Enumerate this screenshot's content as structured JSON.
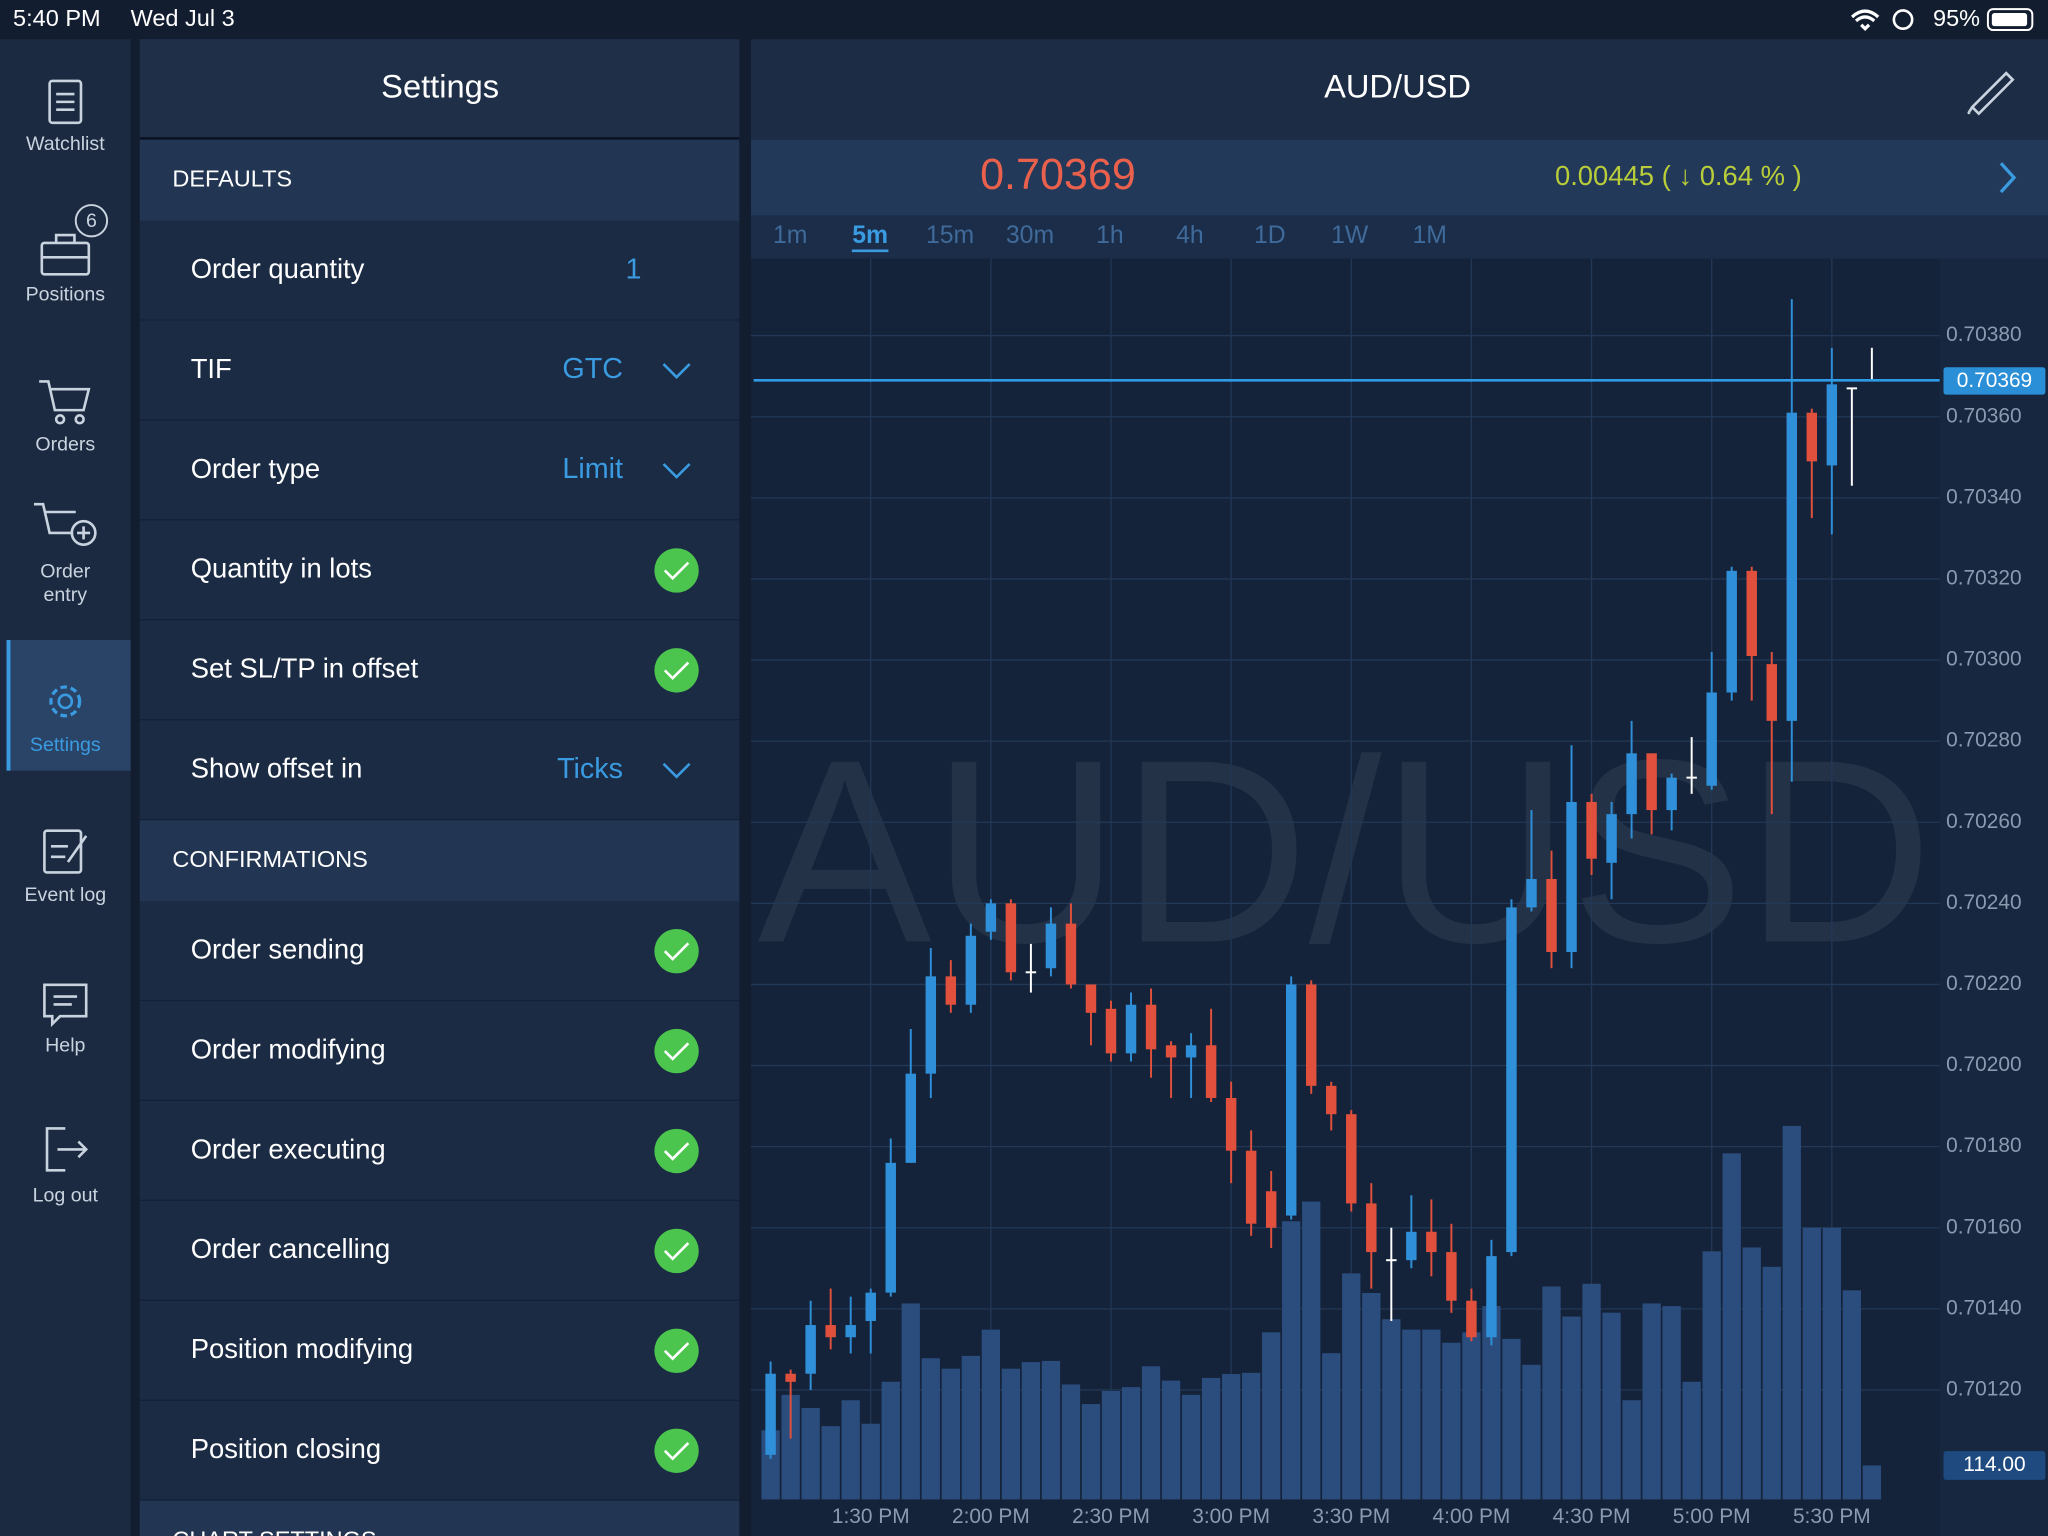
{
  "status_bar": {
    "time": "5:40 PM",
    "date": "Wed Jul 3",
    "battery": "95%"
  },
  "sidebar": {
    "items": [
      {
        "lines": [
          "Watchlist"
        ]
      },
      {
        "lines": [
          "Positions"
        ],
        "badge": 6
      },
      {
        "lines": [
          "Orders"
        ]
      },
      {
        "lines": [
          "Order",
          "entry"
        ]
      },
      {
        "lines": [
          "Settings"
        ],
        "selected": true
      },
      {
        "lines": [
          "Event log"
        ]
      },
      {
        "lines": [
          "Help"
        ]
      },
      {
        "lines": [
          "Log out"
        ]
      }
    ]
  },
  "settings": {
    "title": "Settings",
    "sections": [
      {
        "title": "DEFAULTS",
        "rows": [
          {
            "label": "Order quantity",
            "value": 1
          },
          {
            "label": "TIF",
            "value": "GTC",
            "control": "dropdown"
          },
          {
            "label": "Order type",
            "value": "Limit",
            "control": "dropdown"
          },
          {
            "label": "Quantity in lots",
            "control": "check"
          },
          {
            "label": "Set SL/TP in offset",
            "control": "check"
          },
          {
            "label": "Show offset in",
            "value": "Ticks",
            "control": "dropdown"
          }
        ]
      },
      {
        "title": "CONFIRMATIONS",
        "rows": [
          {
            "label": "Order sending",
            "control": "check"
          },
          {
            "label": "Order modifying",
            "control": "check"
          },
          {
            "label": "Order executing",
            "control": "check"
          },
          {
            "label": "Order cancelling",
            "control": "check"
          },
          {
            "label": "Position modifying",
            "control": "check"
          },
          {
            "label": "Position closing",
            "control": "check"
          }
        ]
      },
      {
        "title": "CHART SETTINGS"
      }
    ]
  },
  "chart_data": {
    "type": "candlestick",
    "title": "AUD/USD",
    "last_price": 0.70369,
    "change": "0.00445 ( ↓ 0.64 % )",
    "timeframes": [
      {
        "label": "1m"
      },
      {
        "label": "5m",
        "selected": true
      },
      {
        "label": "15m"
      },
      {
        "label": "30m"
      },
      {
        "label": "1h"
      },
      {
        "label": "4h"
      },
      {
        "label": "1D"
      },
      {
        "label": "1W"
      },
      {
        "label": "1M"
      }
    ],
    "categories": [
      null,
      null,
      null,
      null,
      null,
      "1:30 PM",
      null,
      null,
      null,
      null,
      null,
      "2:00 PM",
      null,
      null,
      null,
      null,
      null,
      "2:30 PM",
      null,
      null,
      null,
      null,
      null,
      "3:00 PM",
      null,
      null,
      null,
      null,
      null,
      "3:30 PM",
      null,
      null,
      null,
      null,
      null,
      "4:00 PM",
      null,
      null,
      null,
      null,
      null,
      "4:30 PM",
      null,
      null,
      null,
      null,
      null,
      "5:00 PM",
      null,
      null,
      null,
      null,
      null,
      "5:30 PM",
      null,
      null
    ],
    "open": [
      0.70104,
      0.70124,
      0.70124,
      0.70136,
      0.70133,
      0.70137,
      0.70144,
      0.70176,
      0.70198,
      0.70222,
      0.70215,
      0.70233,
      0.7024,
      0.70223,
      0.70224,
      0.70235,
      0.7022,
      0.70214,
      0.70203,
      0.70215,
      0.70205,
      0.70202,
      0.70205,
      0.70192,
      0.70179,
      0.70169,
      0.70163,
      0.7022,
      0.70195,
      0.70188,
      0.70166,
      0.70152,
      0.70152,
      0.70159,
      0.70154,
      0.70142,
      0.70133,
      0.70154,
      0.70239,
      0.70246,
      0.70228,
      0.70265,
      0.7025,
      0.70262,
      0.70277,
      0.70263,
      0.70271,
      0.70269,
      0.70292,
      0.70322,
      0.70299,
      0.70285,
      0.70361,
      0.70348,
      0.70367,
      0.70369
    ],
    "high": [
      0.70127,
      0.70125,
      0.70142,
      0.70145,
      0.70143,
      0.70145,
      0.70182,
      0.70209,
      0.70229,
      0.70226,
      0.70235,
      0.70241,
      0.70241,
      0.7023,
      0.70239,
      0.7024,
      0.7022,
      0.70216,
      0.70218,
      0.70219,
      0.70206,
      0.70208,
      0.70214,
      0.70196,
      0.70184,
      0.70174,
      0.70222,
      0.70221,
      0.70196,
      0.70189,
      0.70171,
      0.7016,
      0.70168,
      0.70167,
      0.70161,
      0.70145,
      0.70157,
      0.70241,
      0.70263,
      0.70253,
      0.70279,
      0.70267,
      0.70265,
      0.70285,
      0.70277,
      0.70272,
      0.70281,
      0.70302,
      0.70323,
      0.70323,
      0.70302,
      0.70389,
      0.70362,
      0.70377,
      0.70367,
      0.70377
    ],
    "low": [
      0.70103,
      0.70108,
      0.7012,
      0.7013,
      0.70129,
      0.70129,
      0.70143,
      0.70176,
      0.70192,
      0.70213,
      0.70213,
      0.70231,
      0.70221,
      0.70218,
      0.70222,
      0.70219,
      0.70205,
      0.70201,
      0.70201,
      0.70197,
      0.70192,
      0.70192,
      0.70191,
      0.70171,
      0.70158,
      0.70155,
      0.70162,
      0.70193,
      0.70184,
      0.70164,
      0.70145,
      0.70137,
      0.7015,
      0.70148,
      0.70139,
      0.70132,
      0.70131,
      0.70153,
      0.70238,
      0.70224,
      0.70224,
      0.70247,
      0.70241,
      0.70256,
      0.70257,
      0.70258,
      0.70267,
      0.70268,
      0.7029,
      0.7029,
      0.70262,
      0.7027,
      0.70335,
      0.70331,
      0.70343,
      0.70369
    ],
    "close": [
      0.70124,
      0.70122,
      0.70136,
      0.70133,
      0.70136,
      0.70144,
      0.70176,
      0.70198,
      0.70222,
      0.70215,
      0.70232,
      0.7024,
      0.70223,
      0.70223,
      0.70235,
      0.7022,
      0.70213,
      0.70203,
      0.70215,
      0.70204,
      0.70202,
      0.70205,
      0.70192,
      0.70179,
      0.70161,
      0.7016,
      0.7022,
      0.70195,
      0.70188,
      0.70166,
      0.70154,
      0.70152,
      0.70159,
      0.70154,
      0.70142,
      0.70133,
      0.70153,
      0.70239,
      0.70246,
      0.70228,
      0.70265,
      0.70251,
      0.70262,
      0.70277,
      0.70263,
      0.70271,
      0.70271,
      0.70292,
      0.70322,
      0.70301,
      0.70285,
      0.70361,
      0.70349,
      0.70368,
      0.70367,
      0.70369
    ],
    "volume": [
      232,
      351,
      307,
      246,
      333,
      254,
      395,
      658,
      474,
      439,
      482,
      570,
      439,
      461,
      465,
      386,
      320,
      364,
      377,
      447,
      399,
      351,
      408,
      421,
      425,
      561,
      934,
      1000,
      491,
      759,
      693,
      605,
      570,
      570,
      526,
      561,
      649,
      539,
      452,
      715,
      614,
      724,
      627,
      333,
      658,
      649,
      395,
      833,
      1162,
      846,
      781,
      1254,
      912,
      912,
      702,
      114
    ],
    "volume_label": {
      "value": 114,
      "label": "114.00"
    },
    "volume_lim": [
      0,
      4166
    ],
    "ylim": [
      0.70093,
      0.70399
    ],
    "yticks": [
      {
        "value": 0.7012,
        "label": "0.70120"
      },
      {
        "value": 0.7014,
        "label": "0.70140"
      },
      {
        "value": 0.7016,
        "label": "0.70160"
      },
      {
        "value": 0.7018,
        "label": "0.70180"
      },
      {
        "value": 0.702,
        "label": "0.70200"
      },
      {
        "value": 0.7022,
        "label": "0.70220"
      },
      {
        "value": 0.7024,
        "label": "0.70240"
      },
      {
        "value": 0.7026,
        "label": "0.70260"
      },
      {
        "value": 0.7028,
        "label": "0.70280"
      },
      {
        "value": 0.703,
        "label": "0.70300"
      },
      {
        "value": 0.7032,
        "label": "0.70320"
      },
      {
        "value": 0.7034,
        "label": "0.70340"
      },
      {
        "value": 0.7036,
        "label": "0.70360"
      },
      {
        "value": 0.7038,
        "label": "0.70380"
      }
    ],
    "grid": true,
    "up_color": "#2f8fd8",
    "down_color": "#e0503c",
    "doji_color": "#ffffff",
    "volume_color": "#2b4d7e",
    "line_color": "#2f9be6"
  }
}
